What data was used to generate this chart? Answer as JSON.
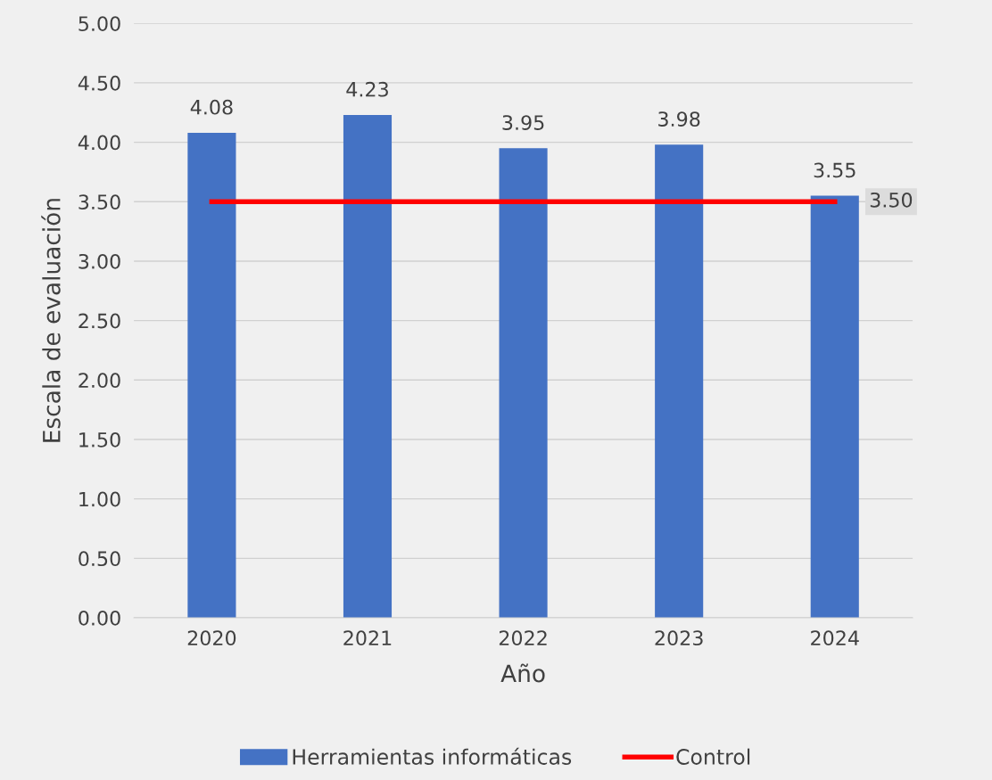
{
  "chart_data": {
    "type": "bar",
    "xlabel": "Año",
    "ylabel": "Escala de evaluación",
    "categories": [
      "2020",
      "2021",
      "2022",
      "2023",
      "2024"
    ],
    "series": [
      {
        "name": "Herramientas informáticas",
        "color": "#4472c4",
        "values": [
          4.08,
          4.23,
          3.95,
          3.98,
          3.55
        ],
        "value_labels": [
          "4.08",
          "4.23",
          "3.95",
          "3.98",
          "3.55"
        ]
      },
      {
        "name": "Control",
        "type": "line",
        "color": "#ff0000",
        "values": [
          3.5,
          3.5,
          3.5,
          3.5,
          3.5
        ],
        "value_labels": [
          null,
          null,
          null,
          null,
          "3.50"
        ]
      }
    ],
    "ylim": [
      0,
      5
    ],
    "yticks": [
      {
        "value": 0,
        "label": "0.00"
      },
      {
        "value": 0.5,
        "label": "0.50"
      },
      {
        "value": 1,
        "label": "1.00"
      },
      {
        "value": 1.5,
        "label": "1.50"
      },
      {
        "value": 2,
        "label": "2.00"
      },
      {
        "value": 2.5,
        "label": "2.50"
      },
      {
        "value": 3,
        "label": "3.00"
      },
      {
        "value": 3.5,
        "label": "3.50"
      },
      {
        "value": 4,
        "label": "4.00"
      },
      {
        "value": 4.5,
        "label": "4.50"
      },
      {
        "value": 5,
        "label": "5.00"
      }
    ],
    "grid": "y",
    "legend": "bottom",
    "marker": "none",
    "line_style": "solid"
  }
}
